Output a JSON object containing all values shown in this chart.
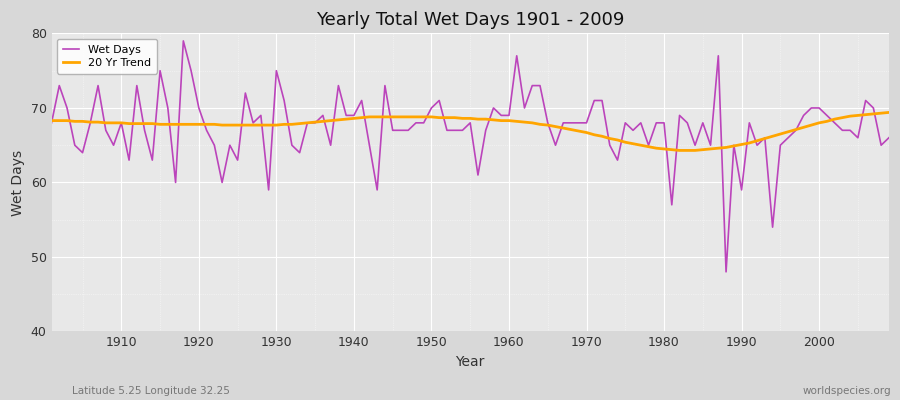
{
  "title": "Yearly Total Wet Days 1901 - 2009",
  "xlabel": "Year",
  "ylabel": "Wet Days",
  "bottom_left_label": "Latitude 5.25 Longitude 32.25",
  "bottom_right_label": "worldspecies.org",
  "line_color": "#bb44bb",
  "trend_color": "#ffa500",
  "fig_bg_color": "#d8d8d8",
  "plot_bg_color": "#e8e8e8",
  "ylim": [
    40,
    80
  ],
  "yticks": [
    40,
    50,
    60,
    70,
    80
  ],
  "xlim": [
    1901,
    2009
  ],
  "xticks": [
    1910,
    1920,
    1930,
    1940,
    1950,
    1960,
    1970,
    1980,
    1990,
    2000
  ],
  "years": [
    1901,
    1902,
    1903,
    1904,
    1905,
    1906,
    1907,
    1908,
    1909,
    1910,
    1911,
    1912,
    1913,
    1914,
    1915,
    1916,
    1917,
    1918,
    1919,
    1920,
    1921,
    1922,
    1923,
    1924,
    1925,
    1926,
    1927,
    1928,
    1929,
    1930,
    1931,
    1932,
    1933,
    1934,
    1935,
    1936,
    1937,
    1938,
    1939,
    1940,
    1941,
    1942,
    1943,
    1944,
    1945,
    1946,
    1947,
    1948,
    1949,
    1950,
    1951,
    1952,
    1953,
    1954,
    1955,
    1956,
    1957,
    1958,
    1959,
    1960,
    1961,
    1962,
    1963,
    1964,
    1965,
    1966,
    1967,
    1968,
    1969,
    1970,
    1971,
    1972,
    1973,
    1974,
    1975,
    1976,
    1977,
    1978,
    1979,
    1980,
    1981,
    1982,
    1983,
    1984,
    1985,
    1986,
    1987,
    1988,
    1989,
    1990,
    1991,
    1992,
    1993,
    1994,
    1995,
    1996,
    1997,
    1998,
    1999,
    2000,
    2001,
    2002,
    2003,
    2004,
    2005,
    2006,
    2007,
    2008,
    2009
  ],
  "wet_days": [
    68,
    73,
    70,
    65,
    64,
    68,
    73,
    67,
    65,
    68,
    63,
    73,
    67,
    63,
    75,
    70,
    60,
    79,
    75,
    70,
    67,
    65,
    60,
    65,
    63,
    72,
    68,
    69,
    59,
    75,
    71,
    65,
    64,
    68,
    68,
    69,
    65,
    73,
    69,
    69,
    71,
    65,
    59,
    73,
    67,
    67,
    67,
    68,
    68,
    70,
    71,
    67,
    67,
    67,
    68,
    61,
    67,
    70,
    69,
    69,
    77,
    70,
    73,
    73,
    68,
    65,
    68,
    68,
    68,
    68,
    71,
    71,
    65,
    63,
    68,
    67,
    68,
    65,
    68,
    68,
    57,
    69,
    68,
    65,
    68,
    65,
    77,
    48,
    65,
    59,
    68,
    65,
    66,
    54,
    65,
    66,
    67,
    69,
    70,
    70,
    69,
    68,
    67,
    67,
    66,
    71,
    70,
    65,
    66
  ],
  "trend_years": [
    1901,
    1902,
    1903,
    1904,
    1905,
    1906,
    1907,
    1908,
    1909,
    1910,
    1911,
    1912,
    1913,
    1914,
    1915,
    1916,
    1917,
    1918,
    1919,
    1920,
    1921,
    1922,
    1923,
    1924,
    1925,
    1926,
    1927,
    1928,
    1929,
    1930,
    1931,
    1932,
    1933,
    1934,
    1935,
    1936,
    1937,
    1938,
    1939,
    1940,
    1941,
    1942,
    1943,
    1944,
    1945,
    1946,
    1947,
    1948,
    1949,
    1950,
    1951,
    1952,
    1953,
    1954,
    1955,
    1956,
    1957,
    1958,
    1959,
    1960,
    1961,
    1962,
    1963,
    1964,
    1965,
    1966,
    1967,
    1968,
    1969,
    1970,
    1971,
    1972,
    1973,
    1974,
    1975,
    1976,
    1977,
    1978,
    1979,
    1980,
    1981,
    1982,
    1983,
    1984,
    1985,
    1986,
    1987,
    1988,
    1989,
    1990,
    1991,
    1992,
    1993,
    1994,
    1995,
    1996,
    1997,
    1998,
    1999,
    2000,
    2001,
    2002,
    2003,
    2004,
    2005,
    2006,
    2007,
    2008,
    2009
  ],
  "trend_values": [
    68.3,
    68.3,
    68.3,
    68.2,
    68.2,
    68.1,
    68.1,
    68.0,
    68.0,
    68.0,
    67.9,
    67.9,
    67.9,
    67.9,
    67.8,
    67.8,
    67.8,
    67.8,
    67.8,
    67.8,
    67.8,
    67.8,
    67.7,
    67.7,
    67.7,
    67.7,
    67.7,
    67.7,
    67.7,
    67.7,
    67.8,
    67.8,
    67.9,
    68.0,
    68.1,
    68.2,
    68.3,
    68.4,
    68.5,
    68.6,
    68.7,
    68.8,
    68.8,
    68.8,
    68.8,
    68.8,
    68.8,
    68.8,
    68.8,
    68.8,
    68.7,
    68.7,
    68.7,
    68.6,
    68.6,
    68.5,
    68.5,
    68.4,
    68.3,
    68.3,
    68.2,
    68.1,
    68.0,
    67.8,
    67.7,
    67.5,
    67.3,
    67.1,
    66.9,
    66.7,
    66.4,
    66.2,
    65.9,
    65.7,
    65.4,
    65.2,
    65.0,
    64.8,
    64.6,
    64.5,
    64.4,
    64.3,
    64.3,
    64.3,
    64.4,
    64.5,
    64.6,
    64.7,
    64.9,
    65.1,
    65.3,
    65.6,
    65.9,
    66.2,
    66.5,
    66.8,
    67.1,
    67.4,
    67.7,
    68.0,
    68.2,
    68.5,
    68.7,
    68.9,
    69.0,
    69.1,
    69.2,
    69.3,
    69.4
  ]
}
